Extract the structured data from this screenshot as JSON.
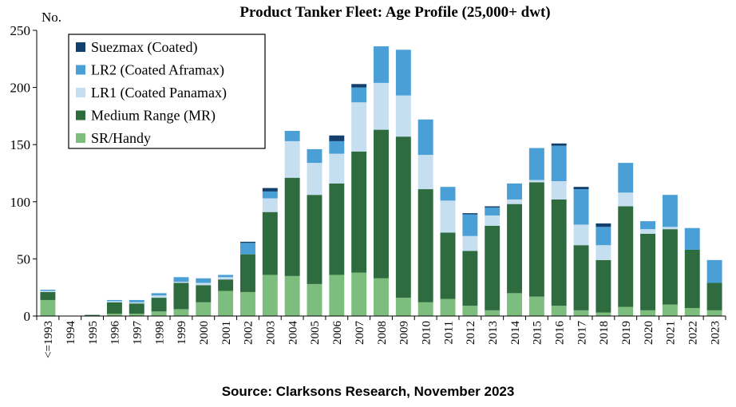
{
  "chart_data": {
    "type": "bar",
    "stacked": true,
    "title": "Product Tanker Fleet: Age Profile (25,000+ dwt)",
    "ylabel": "No.",
    "xlabel": "",
    "source": "Source: Clarksons Research, November 2023",
    "ylim": [
      0,
      250
    ],
    "yticks": [
      0,
      50,
      100,
      150,
      200,
      250
    ],
    "grid": false,
    "legend_position": "top-left",
    "categories": [
      "<=1993",
      "1994",
      "1995",
      "1996",
      "1997",
      "1998",
      "1999",
      "2000",
      "2001",
      "2002",
      "2003",
      "2004",
      "2005",
      "2006",
      "2007",
      "2008",
      "2009",
      "2010",
      "2011",
      "2012",
      "2013",
      "2014",
      "2015",
      "2016",
      "2017",
      "2018",
      "2019",
      "2020",
      "2021",
      "2022",
      "2023"
    ],
    "series": [
      {
        "name": "SR/Handy",
        "color": "#7dbd7d",
        "values": [
          14,
          0,
          0,
          2,
          2,
          4,
          6,
          12,
          22,
          21,
          36,
          35,
          28,
          36,
          38,
          33,
          16,
          12,
          15,
          9,
          5,
          20,
          17,
          9,
          5,
          3,
          8,
          5,
          10,
          7,
          5
        ]
      },
      {
        "name": "Medium Range (MR)",
        "color": "#2e6b3e",
        "values": [
          7,
          0,
          1,
          10,
          9,
          12,
          23,
          15,
          10,
          33,
          55,
          86,
          78,
          80,
          106,
          130,
          141,
          99,
          58,
          48,
          74,
          78,
          100,
          93,
          57,
          46,
          88,
          67,
          66,
          51,
          24
        ]
      },
      {
        "name": "LR1 (Coated Panamax)",
        "color": "#c6dff0",
        "values": [
          1,
          0,
          0,
          1,
          1,
          2,
          1,
          2,
          2,
          0,
          12,
          32,
          28,
          26,
          43,
          41,
          36,
          30,
          28,
          13,
          9,
          4,
          2,
          16,
          18,
          13,
          12,
          4,
          2,
          0,
          0
        ]
      },
      {
        "name": "LR2 (Coated Aframax)",
        "color": "#4a9fd6",
        "values": [
          1,
          0,
          0,
          1,
          2,
          2,
          4,
          4,
          2,
          10,
          6,
          9,
          12,
          11,
          13,
          32,
          40,
          31,
          12,
          19,
          7,
          14,
          28,
          31,
          31,
          16,
          26,
          7,
          28,
          19,
          20
        ]
      },
      {
        "name": "Suezmax (Coated)",
        "color": "#123f6b",
        "values": [
          0,
          0,
          0,
          0,
          0,
          0,
          0,
          0,
          0,
          1,
          3,
          0,
          0,
          5,
          3,
          0,
          0,
          0,
          0,
          1,
          1,
          0,
          0,
          2,
          2,
          3,
          0,
          0,
          0,
          0,
          0
        ]
      }
    ],
    "legend_order": [
      "Suezmax (Coated)",
      "LR2 (Coated Aframax)",
      "LR1 (Coated Panamax)",
      "Medium Range (MR)",
      "SR/Handy"
    ]
  }
}
